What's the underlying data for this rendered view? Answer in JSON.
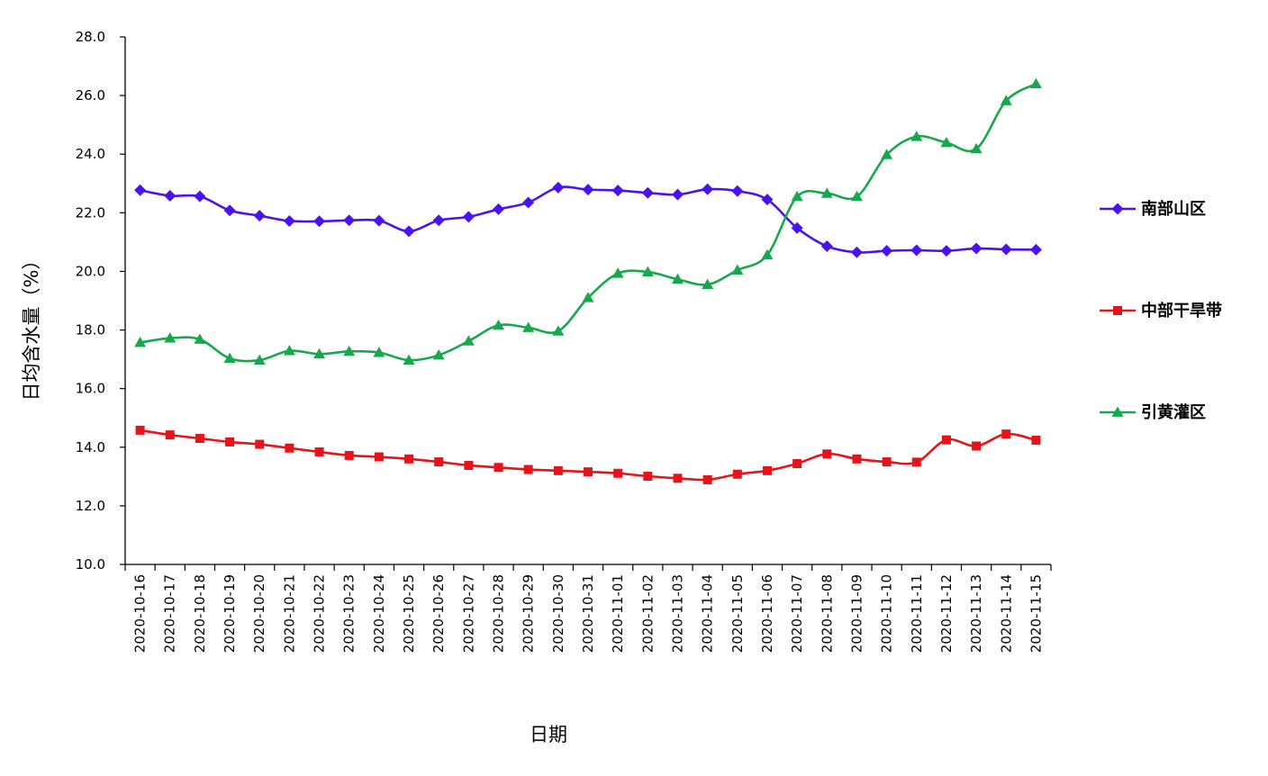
{
  "chart_data": {
    "type": "line",
    "xlabel": "日期",
    "ylabel": "日均含水量（%）",
    "ylim": [
      10,
      28
    ],
    "yticks": [
      "10.0",
      "12.0",
      "14.0",
      "16.0",
      "18.0",
      "20.0",
      "22.0",
      "24.0",
      "26.0",
      "28.0"
    ],
    "grid": false,
    "legend_position": "right",
    "categories": [
      "2020-10-16",
      "2020-10-17",
      "2020-10-18",
      "2020-10-19",
      "2020-10-20",
      "2020-10-21",
      "2020-10-22",
      "2020-10-23",
      "2020-10-24",
      "2020-10-25",
      "2020-10-26",
      "2020-10-27",
      "2020-10-28",
      "2020-10-29",
      "2020-10-30",
      "2020-10-31",
      "2020-11-01",
      "2020-11-02",
      "2020-11-03",
      "2020-11-04",
      "2020-11-05",
      "2020-11-06",
      "2020-11-07",
      "2020-11-08",
      "2020-11-09",
      "2020-11-10",
      "2020-11-11",
      "2020-11-12",
      "2020-11-13",
      "2020-11-14",
      "2020-11-15"
    ],
    "series": [
      {
        "name": "南部山区",
        "color": "#4B12F0",
        "marker": "diamond",
        "values": [
          22.77,
          22.58,
          22.56,
          22.08,
          21.9,
          21.72,
          21.71,
          21.74,
          21.73,
          21.37,
          21.74,
          21.86,
          22.12,
          22.35,
          22.86,
          22.79,
          22.76,
          22.68,
          22.62,
          22.8,
          22.74,
          22.45,
          21.48,
          20.86,
          20.65,
          20.7,
          20.72,
          20.7,
          20.78,
          20.75,
          20.74
        ]
      },
      {
        "name": "中部干旱带",
        "color": "#E6141A",
        "marker": "square",
        "values": [
          14.58,
          14.42,
          14.3,
          14.18,
          14.1,
          13.97,
          13.84,
          13.72,
          13.67,
          13.6,
          13.5,
          13.38,
          13.31,
          13.24,
          13.2,
          13.16,
          13.11,
          13.01,
          12.94,
          12.89,
          13.08,
          13.2,
          13.44,
          13.77,
          13.6,
          13.5,
          13.49,
          14.25,
          14.04,
          14.45,
          14.24
        ]
      },
      {
        "name": "引黄灌区",
        "color": "#17A84E",
        "marker": "triangle",
        "values": [
          17.57,
          17.72,
          17.68,
          17.03,
          16.97,
          17.29,
          17.18,
          17.27,
          17.23,
          16.97,
          17.14,
          17.62,
          18.16,
          18.08,
          17.96,
          19.1,
          19.93,
          19.98,
          19.73,
          19.55,
          20.04,
          20.56,
          22.55,
          22.66,
          22.55,
          23.98,
          24.6,
          24.39,
          24.18,
          25.82,
          26.4
        ]
      }
    ]
  }
}
